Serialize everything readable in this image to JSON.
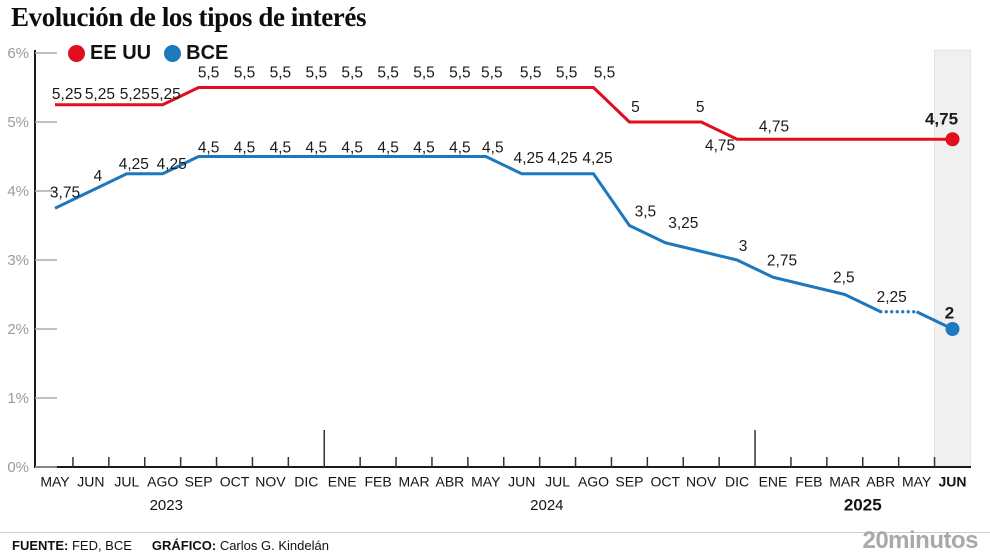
{
  "title": "Evolución de los tipos de interés",
  "legend": [
    {
      "label": "EE UU",
      "color": "#e10f1c"
    },
    {
      "label": "BCE",
      "color": "#1e78be"
    }
  ],
  "footer": {
    "fuente_label": "FUENTE:",
    "fuente_value": " FED, BCE",
    "grafico_label": "GRÁFICO:",
    "grafico_value": " Carlos G. Kindelán",
    "brand": "20minutos"
  },
  "chart_data": {
    "type": "line",
    "title": "Evolución de los tipos de interés",
    "xlabel": "",
    "ylabel": "",
    "units": "%",
    "ylim": [
      0,
      6
    ],
    "grid": false,
    "legend_position": "top-left",
    "y_axis_ticks": [
      {
        "label": "6%",
        "value": 6
      },
      {
        "label": "5%",
        "value": 5
      },
      {
        "label": "4%",
        "value": 4
      },
      {
        "label": "3%",
        "value": 3
      },
      {
        "label": "2%",
        "value": 2
      },
      {
        "label": "1%",
        "value": 1
      },
      {
        "label": "0%",
        "value": 0
      }
    ],
    "x_categories": [
      "MAY",
      "JUN",
      "JUL",
      "AGO",
      "SEP",
      "OCT",
      "NOV",
      "DIC",
      "ENE",
      "FEB",
      "MAR",
      "ABR",
      "MAY",
      "JUN",
      "JUL",
      "AGO",
      "SEP",
      "OCT",
      "NOV",
      "DIC",
      "ENE",
      "FEB",
      "MAR",
      "ABR",
      "MAY",
      "JUN"
    ],
    "bold_month_index": 25,
    "x_years": [
      {
        "label": "2023",
        "index": 3.1,
        "bold": false
      },
      {
        "label": "2024",
        "index": 13.7,
        "bold": false
      },
      {
        "label": "2025",
        "index": 22.5,
        "bold": true
      }
    ],
    "year_separator_after_index": [
      7,
      19
    ],
    "highlight_band": {
      "month_index": 25
    },
    "series": [
      {
        "name": "EE UU",
        "color": "#e10f1c",
        "end_dot": true,
        "values": [
          5.25,
          5.25,
          5.25,
          5.25,
          5.5,
          5.5,
          5.5,
          5.5,
          5.5,
          5.5,
          5.5,
          5.5,
          5.5,
          5.5,
          5.5,
          5.5,
          5,
          5,
          5,
          4.75,
          4.75,
          4.75,
          4.75,
          4.75,
          4.75,
          4.75
        ],
        "point_labels": [
          {
            "i": 0,
            "text": "5,25",
            "dx": 12,
            "dy": -10
          },
          {
            "i": 1,
            "text": "5,25",
            "dx": 9,
            "dy": -10
          },
          {
            "i": 2,
            "text": "5,25",
            "dx": 8,
            "dy": -10
          },
          {
            "i": 3,
            "text": "5,25",
            "dx": 3,
            "dy": -10
          },
          {
            "i": 4,
            "text": "5,5",
            "dx": 10,
            "dy": -14
          },
          {
            "i": 5,
            "text": "5,5",
            "dx": 10,
            "dy": -14
          },
          {
            "i": 6,
            "text": "5,5",
            "dx": 10,
            "dy": -14
          },
          {
            "i": 7,
            "text": "5,5",
            "dx": 10,
            "dy": -14
          },
          {
            "i": 8,
            "text": "5,5",
            "dx": 10,
            "dy": -14
          },
          {
            "i": 9,
            "text": "5,5",
            "dx": 10,
            "dy": -14
          },
          {
            "i": 10,
            "text": "5,5",
            "dx": 10,
            "dy": -14
          },
          {
            "i": 11,
            "text": "5,5",
            "dx": 10,
            "dy": -14
          },
          {
            "i": 12,
            "text": "5,5",
            "dx": 6,
            "dy": -14
          },
          {
            "i": 13,
            "text": "5,5",
            "dx": 9,
            "dy": -14
          },
          {
            "i": 14,
            "text": "5,5",
            "dx": 9,
            "dy": -14
          },
          {
            "i": 15,
            "text": "5,5",
            "dx": 11,
            "dy": -14
          },
          {
            "i": 16,
            "text": "5",
            "dx": 6,
            "dy": -14
          },
          {
            "i": 18,
            "text": "5",
            "dx": -1,
            "dy": -14
          },
          {
            "i": 19,
            "text": "4,75",
            "dx": -17,
            "dy": 7
          },
          {
            "i": 20,
            "text": "4,75",
            "dx": 1,
            "dy": -12
          },
          {
            "i": 25,
            "text": "4,75",
            "dx": -11,
            "dy": -19,
            "bold": true
          }
        ]
      },
      {
        "name": "BCE",
        "color": "#1e78be",
        "end_dot": true,
        "dashed_segment": [
          23,
          24
        ],
        "values": [
          3.75,
          4,
          4.25,
          4.25,
          4.5,
          4.5,
          4.5,
          4.5,
          4.5,
          4.5,
          4.5,
          4.5,
          4.5,
          4.25,
          4.25,
          4.25,
          3.5,
          3.25,
          3.125,
          3,
          2.75,
          2.625,
          2.5,
          2.25,
          2.25,
          2
        ],
        "point_labels": [
          {
            "i": 0,
            "text": "3,75",
            "dx": 10,
            "dy": -15
          },
          {
            "i": 1,
            "text": "4",
            "dx": 7,
            "dy": -14
          },
          {
            "i": 2,
            "text": "4,25",
            "dx": 7,
            "dy": -9
          },
          {
            "i": 3,
            "text": "4,25",
            "dx": 9,
            "dy": -9
          },
          {
            "i": 4,
            "text": "4,5",
            "dx": 10,
            "dy": -8
          },
          {
            "i": 5,
            "text": "4,5",
            "dx": 10,
            "dy": -8
          },
          {
            "i": 6,
            "text": "4,5",
            "dx": 10,
            "dy": -8
          },
          {
            "i": 7,
            "text": "4,5",
            "dx": 10,
            "dy": -8
          },
          {
            "i": 8,
            "text": "4,5",
            "dx": 10,
            "dy": -8
          },
          {
            "i": 9,
            "text": "4,5",
            "dx": 10,
            "dy": -8
          },
          {
            "i": 10,
            "text": "4,5",
            "dx": 10,
            "dy": -8
          },
          {
            "i": 11,
            "text": "4,5",
            "dx": 10,
            "dy": -8
          },
          {
            "i": 12,
            "text": "4,5",
            "dx": 7,
            "dy": -8
          },
          {
            "i": 13,
            "text": "4,25",
            "dx": 7,
            "dy": -15
          },
          {
            "i": 14,
            "text": "4,25",
            "dx": 5,
            "dy": -15
          },
          {
            "i": 15,
            "text": "4,25",
            "dx": 4,
            "dy": -15
          },
          {
            "i": 16,
            "text": "3,5",
            "dx": 16,
            "dy": -13
          },
          {
            "i": 17,
            "text": "3,25",
            "dx": 18,
            "dy": -19
          },
          {
            "i": 19,
            "text": "3",
            "dx": 6,
            "dy": -13
          },
          {
            "i": 20,
            "text": "2,75",
            "dx": 9,
            "dy": -16
          },
          {
            "i": 22,
            "text": "2,5",
            "dx": -1,
            "dy": -16
          },
          {
            "i": 23,
            "text": "2,25",
            "dx": 11,
            "dy": -14
          },
          {
            "i": 25,
            "text": "2",
            "dx": -3,
            "dy": -15,
            "bold": true
          }
        ]
      }
    ]
  }
}
